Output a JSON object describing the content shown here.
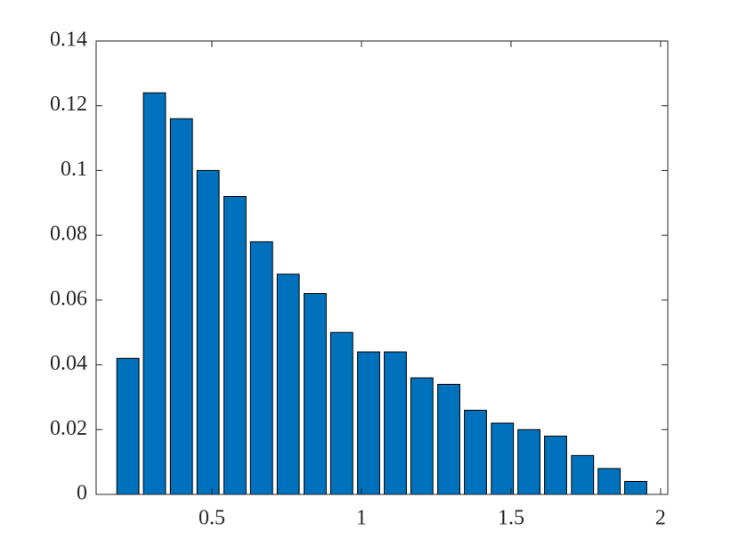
{
  "chart_data": {
    "type": "bar",
    "x": [
      0.219,
      0.308,
      0.398,
      0.487,
      0.577,
      0.666,
      0.755,
      0.845,
      0.934,
      1.024,
      1.113,
      1.202,
      1.292,
      1.381,
      1.471,
      1.56,
      1.649,
      1.739,
      1.828,
      1.917
    ],
    "values": [
      0.042,
      0.124,
      0.116,
      0.1,
      0.092,
      0.078,
      0.068,
      0.062,
      0.05,
      0.044,
      0.044,
      0.036,
      0.034,
      0.026,
      0.022,
      0.02,
      0.018,
      0.012,
      0.008,
      0.004
    ],
    "color": "#0072bd",
    "xlim": [
      0.113,
      2.024
    ],
    "xticks": [
      0.5,
      1,
      1.5,
      2
    ],
    "ylim": [
      0,
      0.14
    ],
    "yticks": [
      0,
      0.02,
      0.04,
      0.06,
      0.08,
      0.1,
      0.12,
      0.14
    ]
  }
}
